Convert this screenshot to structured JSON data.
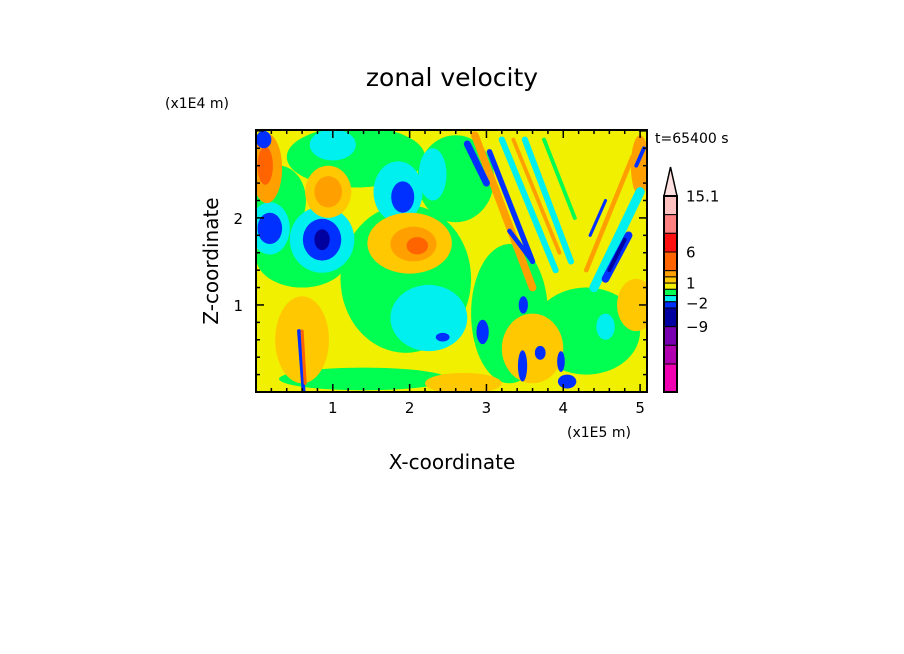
{
  "chart_data": {
    "type": "heatmap",
    "title": "zonal velocity",
    "xlabel": "X-coordinate",
    "ylabel": "Z-coordinate",
    "x_unit_label": "(x1E5 m)",
    "y_unit_label": "(x1E4 m)",
    "time_label": "t=65400 s",
    "xlim": [
      0,
      5.09
    ],
    "ylim": [
      0,
      3.01
    ],
    "x_ticks": [
      1,
      2,
      3,
      4,
      5
    ],
    "y_ticks": [
      1,
      2
    ],
    "x_tick_labels": [
      "1",
      "2",
      "3",
      "4",
      "5"
    ],
    "y_tick_labels": [
      "1",
      "2"
    ],
    "minor_tick_step": 0.2,
    "background_level": "yellow",
    "colorbar": {
      "labels": [
        {
          "text": "15.1",
          "segment": 0
        },
        {
          "text": "6",
          "segment": 3
        },
        {
          "text": "1",
          "segment": 6
        },
        {
          "text": "-2",
          "segment": 8
        },
        {
          "text": "-9",
          "segment": 11
        }
      ],
      "triangle_color": "#ffe0e0",
      "segments": [
        {
          "color": "#ffc0c0",
          "span": 3
        },
        {
          "color": "#ff8080",
          "span": 3
        },
        {
          "color": "#ff1010",
          "span": 3
        },
        {
          "color": "#ff6400",
          "span": 3
        },
        {
          "color": "#ffa000",
          "span": 1
        },
        {
          "color": "#ffc800",
          "span": 1
        },
        {
          "color": "#f0f000",
          "span": 1
        },
        {
          "color": "#00ff50",
          "span": 1
        },
        {
          "color": "#00f0f0",
          "span": 1
        },
        {
          "color": "#0030ff",
          "span": 1
        },
        {
          "color": "#0000a0",
          "span": 3
        },
        {
          "color": "#7800b0",
          "span": 3
        },
        {
          "color": "#b000b0",
          "span": 3
        },
        {
          "color": "#f000b0",
          "span": 4.5
        }
      ]
    },
    "level_colors": {
      "darkorange": "#ff6400",
      "orange": "#ffa000",
      "lightorange": "#ffc800",
      "yellow": "#f0f000",
      "green": "#00ff50",
      "cyan": "#00f0f0",
      "blue": "#0030ff",
      "darkblue": "#0000a0"
    },
    "blobs": [
      {
        "x": 1.95,
        "z": 1.3,
        "rx": 0.85,
        "rz": 0.85,
        "level": "green"
      },
      {
        "x": 0.6,
        "z": 1.55,
        "rx": 0.6,
        "rz": 0.35,
        "level": "green"
      },
      {
        "x": 1.3,
        "z": 2.7,
        "rx": 0.9,
        "rz": 0.35,
        "level": "green"
      },
      {
        "x": 2.6,
        "z": 2.45,
        "rx": 0.5,
        "rz": 0.5,
        "level": "green"
      },
      {
        "x": 3.3,
        "z": 0.9,
        "rx": 0.5,
        "rz": 0.8,
        "level": "green"
      },
      {
        "x": 4.3,
        "z": 0.7,
        "rx": 0.7,
        "rz": 0.5,
        "level": "green"
      },
      {
        "x": 1.4,
        "z": 0.15,
        "rx": 1.1,
        "rz": 0.13,
        "level": "green"
      },
      {
        "x": 0.3,
        "z": 2.2,
        "rx": 0.35,
        "rz": 0.4,
        "level": "green"
      },
      {
        "x": 2.25,
        "z": 0.85,
        "rx": 0.5,
        "rz": 0.38,
        "level": "cyan"
      },
      {
        "x": 1.85,
        "z": 2.3,
        "rx": 0.32,
        "rz": 0.35,
        "level": "cyan"
      },
      {
        "x": 1.91,
        "z": 2.24,
        "rx": 0.15,
        "rz": 0.18,
        "level": "blue"
      },
      {
        "x": 0.86,
        "z": 1.75,
        "rx": 0.42,
        "rz": 0.38,
        "level": "cyan"
      },
      {
        "x": 0.86,
        "z": 1.75,
        "rx": 0.25,
        "rz": 0.24,
        "level": "blue"
      },
      {
        "x": 0.86,
        "z": 1.75,
        "rx": 0.1,
        "rz": 0.12,
        "level": "darkblue"
      },
      {
        "x": 0.18,
        "z": 1.88,
        "rx": 0.26,
        "rz": 0.3,
        "level": "cyan"
      },
      {
        "x": 0.18,
        "z": 1.88,
        "rx": 0.16,
        "rz": 0.18,
        "level": "blue"
      },
      {
        "x": 1.0,
        "z": 2.84,
        "rx": 0.3,
        "rz": 0.18,
        "level": "cyan"
      },
      {
        "x": 2.3,
        "z": 2.5,
        "rx": 0.18,
        "rz": 0.3,
        "level": "cyan"
      },
      {
        "x": 2.0,
        "z": 1.71,
        "rx": 0.55,
        "rz": 0.35,
        "level": "lightorange"
      },
      {
        "x": 2.05,
        "z": 1.7,
        "rx": 0.3,
        "rz": 0.2,
        "level": "orange"
      },
      {
        "x": 2.1,
        "z": 1.68,
        "rx": 0.14,
        "rz": 0.1,
        "level": "darkorange"
      },
      {
        "x": 0.94,
        "z": 2.3,
        "rx": 0.3,
        "rz": 0.3,
        "level": "lightorange"
      },
      {
        "x": 0.94,
        "z": 2.3,
        "rx": 0.18,
        "rz": 0.18,
        "level": "orange"
      },
      {
        "x": 0.14,
        "z": 2.57,
        "rx": 0.2,
        "rz": 0.4,
        "level": "orange"
      },
      {
        "x": 0.12,
        "z": 2.6,
        "rx": 0.1,
        "rz": 0.22,
        "level": "darkorange"
      },
      {
        "x": 0.6,
        "z": 0.6,
        "rx": 0.35,
        "rz": 0.5,
        "level": "lightorange"
      },
      {
        "x": 2.7,
        "z": 0.1,
        "rx": 0.5,
        "rz": 0.12,
        "level": "lightorange"
      },
      {
        "x": 3.6,
        "z": 0.5,
        "rx": 0.4,
        "rz": 0.4,
        "level": "lightorange"
      },
      {
        "x": 4.95,
        "z": 1.0,
        "rx": 0.25,
        "rz": 0.3,
        "level": "lightorange"
      },
      {
        "x": 4.55,
        "z": 0.75,
        "rx": 0.12,
        "rz": 0.15,
        "level": "cyan"
      },
      {
        "x": 2.43,
        "z": 0.63,
        "rx": 0.09,
        "rz": 0.05,
        "level": "blue"
      },
      {
        "x": 2.95,
        "z": 0.69,
        "rx": 0.08,
        "rz": 0.14,
        "level": "blue"
      },
      {
        "x": 3.47,
        "z": 0.3,
        "rx": 0.06,
        "rz": 0.18,
        "level": "blue"
      },
      {
        "x": 3.7,
        "z": 0.45,
        "rx": 0.07,
        "rz": 0.08,
        "level": "blue"
      },
      {
        "x": 3.97,
        "z": 0.35,
        "rx": 0.05,
        "rz": 0.12,
        "level": "blue"
      },
      {
        "x": 4.05,
        "z": 0.12,
        "rx": 0.12,
        "rz": 0.08,
        "level": "blue"
      },
      {
        "x": 3.48,
        "z": 1.0,
        "rx": 0.06,
        "rz": 0.1,
        "level": "blue"
      },
      {
        "x": 5.0,
        "z": 2.6,
        "rx": 0.12,
        "rz": 0.35,
        "level": "orange"
      },
      {
        "x": 0.1,
        "z": 2.9,
        "rx": 0.1,
        "rz": 0.1,
        "level": "blue"
      }
    ],
    "stripes": [
      {
        "from": [
          2.85,
          2.95
        ],
        "to": [
          3.6,
          1.2
        ],
        "width": 0.1,
        "level": "orange"
      },
      {
        "from": [
          3.04,
          2.76
        ],
        "to": [
          3.6,
          1.5
        ],
        "width": 0.07,
        "level": "blue"
      },
      {
        "from": [
          2.75,
          2.85
        ],
        "to": [
          3.0,
          2.4
        ],
        "width": 0.09,
        "level": "blue"
      },
      {
        "from": [
          3.3,
          1.85
        ],
        "to": [
          3.6,
          1.5
        ],
        "width": 0.06,
        "level": "blue"
      },
      {
        "from": [
          3.2,
          2.9
        ],
        "to": [
          3.9,
          1.4
        ],
        "width": 0.08,
        "level": "cyan"
      },
      {
        "from": [
          3.5,
          2.9
        ],
        "to": [
          4.1,
          1.5
        ],
        "width": 0.08,
        "level": "cyan"
      },
      {
        "from": [
          3.35,
          2.9
        ],
        "to": [
          3.95,
          1.6
        ],
        "width": 0.05,
        "level": "orange"
      },
      {
        "from": [
          3.75,
          2.9
        ],
        "to": [
          4.15,
          2.0
        ],
        "width": 0.05,
        "level": "green"
      },
      {
        "from": [
          5.0,
          2.3
        ],
        "to": [
          4.4,
          1.2
        ],
        "width": 0.12,
        "level": "cyan"
      },
      {
        "from": [
          4.9,
          2.7
        ],
        "to": [
          4.3,
          1.4
        ],
        "width": 0.06,
        "level": "orange"
      },
      {
        "from": [
          4.85,
          1.8
        ],
        "to": [
          4.55,
          1.3
        ],
        "width": 0.1,
        "level": "blue"
      },
      {
        "from": [
          4.8,
          1.75
        ],
        "to": [
          4.6,
          1.4
        ],
        "width": 0.05,
        "level": "darkblue"
      },
      {
        "from": [
          4.55,
          2.2
        ],
        "to": [
          4.35,
          1.8
        ],
        "width": 0.04,
        "level": "blue"
      },
      {
        "from": [
          5.05,
          2.8
        ],
        "to": [
          4.95,
          2.6
        ],
        "width": 0.05,
        "level": "blue"
      },
      {
        "from": [
          0.56,
          0.7
        ],
        "to": [
          0.62,
          0.0
        ],
        "width": 0.05,
        "level": "blue"
      },
      {
        "from": [
          0.6,
          0.7
        ],
        "to": [
          0.64,
          0.1
        ],
        "width": 0.04,
        "level": "darkorange"
      }
    ]
  }
}
